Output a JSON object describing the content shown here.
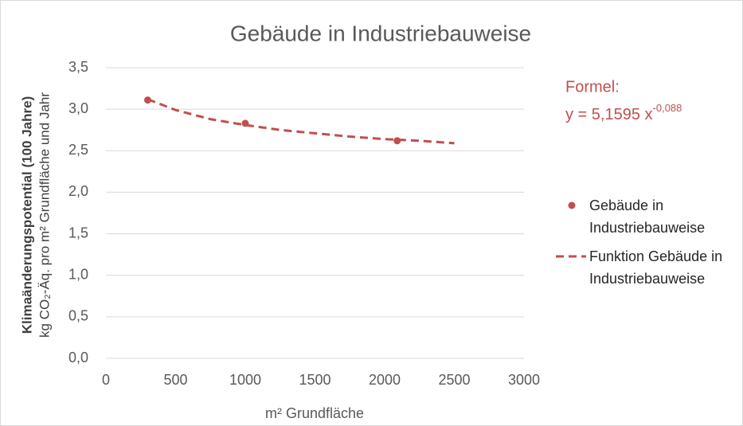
{
  "chart_data": {
    "type": "scatter",
    "title": "Gebäude in Industriebauweise",
    "ylabel": [
      "Klimaänderungspotential (100 Jahre)",
      "kg CO₂-Äq. pro m² Grundfläche und Jahr"
    ],
    "xlabel": "m² Grundfläche",
    "annotation": {
      "label": "Formel:",
      "formula": "y = 5,1595 x",
      "exponent": "-0,088"
    },
    "xlim": [
      0,
      3000
    ],
    "xticks": [
      0,
      500,
      1000,
      1500,
      2000,
      2500,
      3000
    ],
    "ylim": [
      0,
      3.5
    ],
    "yticks": [
      {
        "value": 0,
        "label": "0,0"
      },
      {
        "value": 0.5,
        "label": "0,5"
      },
      {
        "value": 1,
        "label": "1,0"
      },
      {
        "value": 1.5,
        "label": "1,5"
      },
      {
        "value": 2,
        "label": "2,0"
      },
      {
        "value": 2.5,
        "label": "2,5"
      },
      {
        "value": 3,
        "label": "3,0"
      },
      {
        "value": 3.5,
        "label": "3,5"
      }
    ],
    "grid": true,
    "legend": "right",
    "series": [
      {
        "name": "Gebäude in Industriebauweise",
        "mark": "point",
        "color": "#c0504d",
        "x": [
          300,
          1000,
          2090
        ],
        "values": [
          3.11,
          2.83,
          2.62
        ]
      },
      {
        "name": "Funktion Gebäude in Industriebauweise",
        "mark": "dashed-line",
        "color": "#c0504d",
        "x": [
          300,
          500,
          750,
          1000,
          1250,
          1500,
          1750,
          2000,
          2250,
          2500
        ],
        "values": [
          3.12,
          2.99,
          2.88,
          2.81,
          2.75,
          2.71,
          2.67,
          2.64,
          2.62,
          2.59
        ]
      }
    ]
  }
}
